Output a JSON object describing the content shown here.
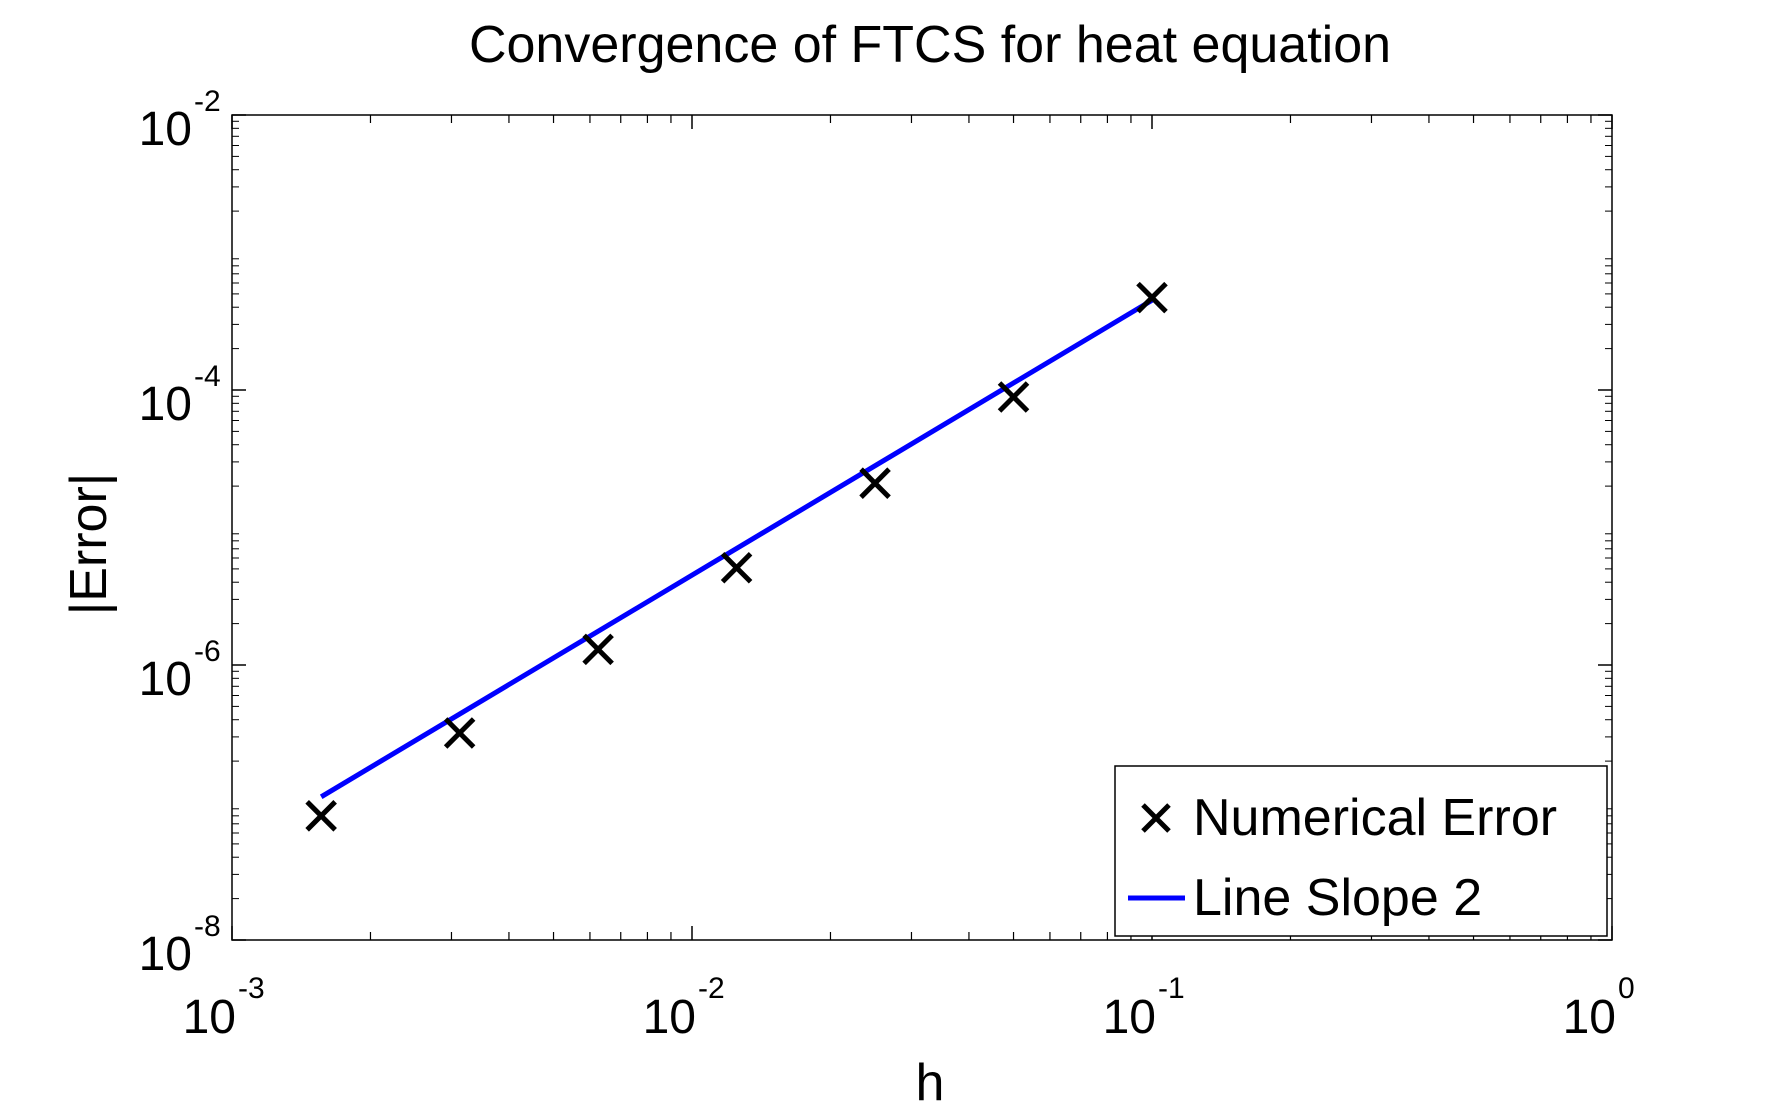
{
  "chart_data": {
    "type": "line",
    "title": "Convergence of FTCS for heat equation",
    "xlabel": "h",
    "ylabel": "|Error|",
    "xscale": "log",
    "yscale": "log",
    "xlim": [
      0.001,
      1
    ],
    "ylim": [
      1e-08,
      0.01
    ],
    "grid": false,
    "legend_position": "bottom-right",
    "x_ticks": [
      {
        "base": "10",
        "exp": "-3",
        "value": 0.001
      },
      {
        "base": "10",
        "exp": "-2",
        "value": 0.01
      },
      {
        "base": "10",
        "exp": "-1",
        "value": 0.1
      },
      {
        "base": "10",
        "exp": "0",
        "value": 1
      }
    ],
    "y_ticks": [
      {
        "base": "10",
        "exp": "-8",
        "value": 1e-08
      },
      {
        "base": "10",
        "exp": "-6",
        "value": 1e-06
      },
      {
        "base": "10",
        "exp": "-4",
        "value": 0.0001
      },
      {
        "base": "10",
        "exp": "-2",
        "value": 0.01
      }
    ],
    "series": [
      {
        "name": "Numerical Error",
        "style": "marker-x",
        "color": "#000000",
        "x": [
          0.0015625,
          0.003125,
          0.00625,
          0.0125,
          0.025,
          0.05,
          0.1
        ],
        "y": [
          8e-08,
          3.2e-07,
          1.3e-06,
          5.1e-06,
          2.1e-05,
          8.9e-05,
          0.00047
        ]
      },
      {
        "name": "Line Slope 2",
        "style": "line",
        "color": "#0000ff",
        "x": [
          0.0015625,
          0.1
        ],
        "y": [
          1.1e-07,
          0.00045
        ]
      }
    ]
  }
}
